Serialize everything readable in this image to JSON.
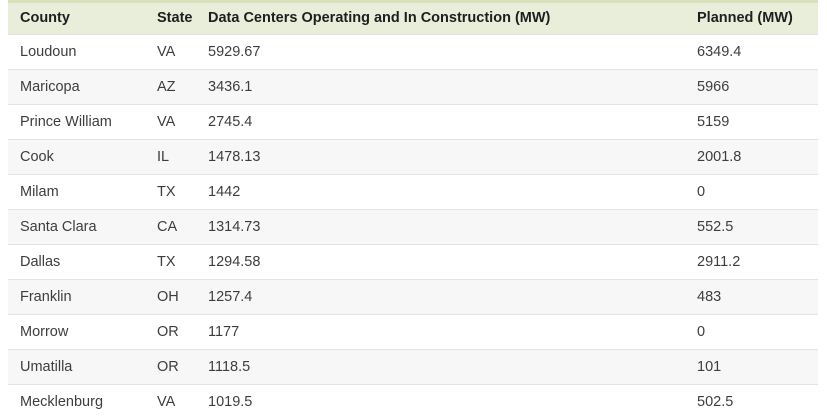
{
  "chart_data": {
    "type": "table",
    "columns": [
      "County",
      "State",
      "Data Centers Operating and In Construction (MW)",
      "Planned (MW)"
    ],
    "rows": [
      [
        "Loudoun",
        "VA",
        5929.67,
        6349.4
      ],
      [
        "Maricopa",
        "AZ",
        3436.1,
        5966
      ],
      [
        "Prince William",
        "VA",
        2745.4,
        5159
      ],
      [
        "Cook",
        "IL",
        1478.13,
        2001.8
      ],
      [
        "Milam",
        "TX",
        1442,
        0
      ],
      [
        "Santa Clara",
        "CA",
        1314.73,
        552.5
      ],
      [
        "Dallas",
        "TX",
        1294.58,
        2911.2
      ],
      [
        "Franklin",
        "OH",
        1257.4,
        483
      ],
      [
        "Morrow",
        "OR",
        1177,
        0
      ],
      [
        "Umatilla",
        "OR",
        1118.5,
        101
      ],
      [
        "Mecklenburg",
        "VA",
        1019.5,
        502.5
      ]
    ],
    "title": "",
    "layout": {
      "grid": "horizontal-row-separators",
      "zebra_striping": true,
      "header_position": "top"
    }
  },
  "colors": {
    "top-border": "#d8e1bb",
    "header-bg": "#e9eedb",
    "header-text": "#1e1e1e",
    "body-text": "#3d3d3d",
    "alt-row-bg": "#f7f7f7",
    "row-border": "#e3e3e3",
    "page-bg": "#ffffff"
  }
}
